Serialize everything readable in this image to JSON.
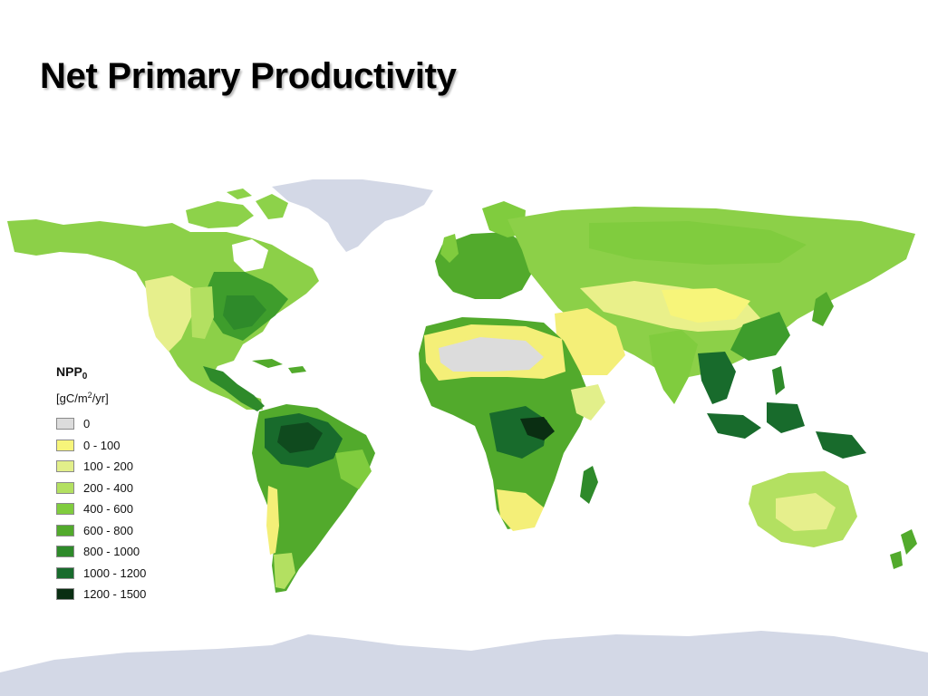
{
  "title": "Net Primary Productivity",
  "legend": {
    "title_main": "NPP",
    "title_sub": "0",
    "unit_pre": "[gC/m",
    "unit_sup": "2",
    "unit_post": "/yr]",
    "items": [
      {
        "label": "0",
        "color": "#dcdcdc"
      },
      {
        "label": "0 - 100",
        "color": "#f7f57a"
      },
      {
        "label": "100 - 200",
        "color": "#e2ef8a"
      },
      {
        "label": "200 - 400",
        "color": "#b3e061"
      },
      {
        "label": "400 - 600",
        "color": "#80cc3e"
      },
      {
        "label": "600 - 800",
        "color": "#52aa2c"
      },
      {
        "label": "800 - 1000",
        "color": "#2e8a2a"
      },
      {
        "label": "1000 - 1200",
        "color": "#186b2c"
      },
      {
        "label": "1200 - 1500",
        "color": "#0a2e12"
      }
    ]
  },
  "colors": {
    "ice": "#d3d8e6",
    "desert": "#dcdcdc",
    "background": "#ffffff"
  }
}
